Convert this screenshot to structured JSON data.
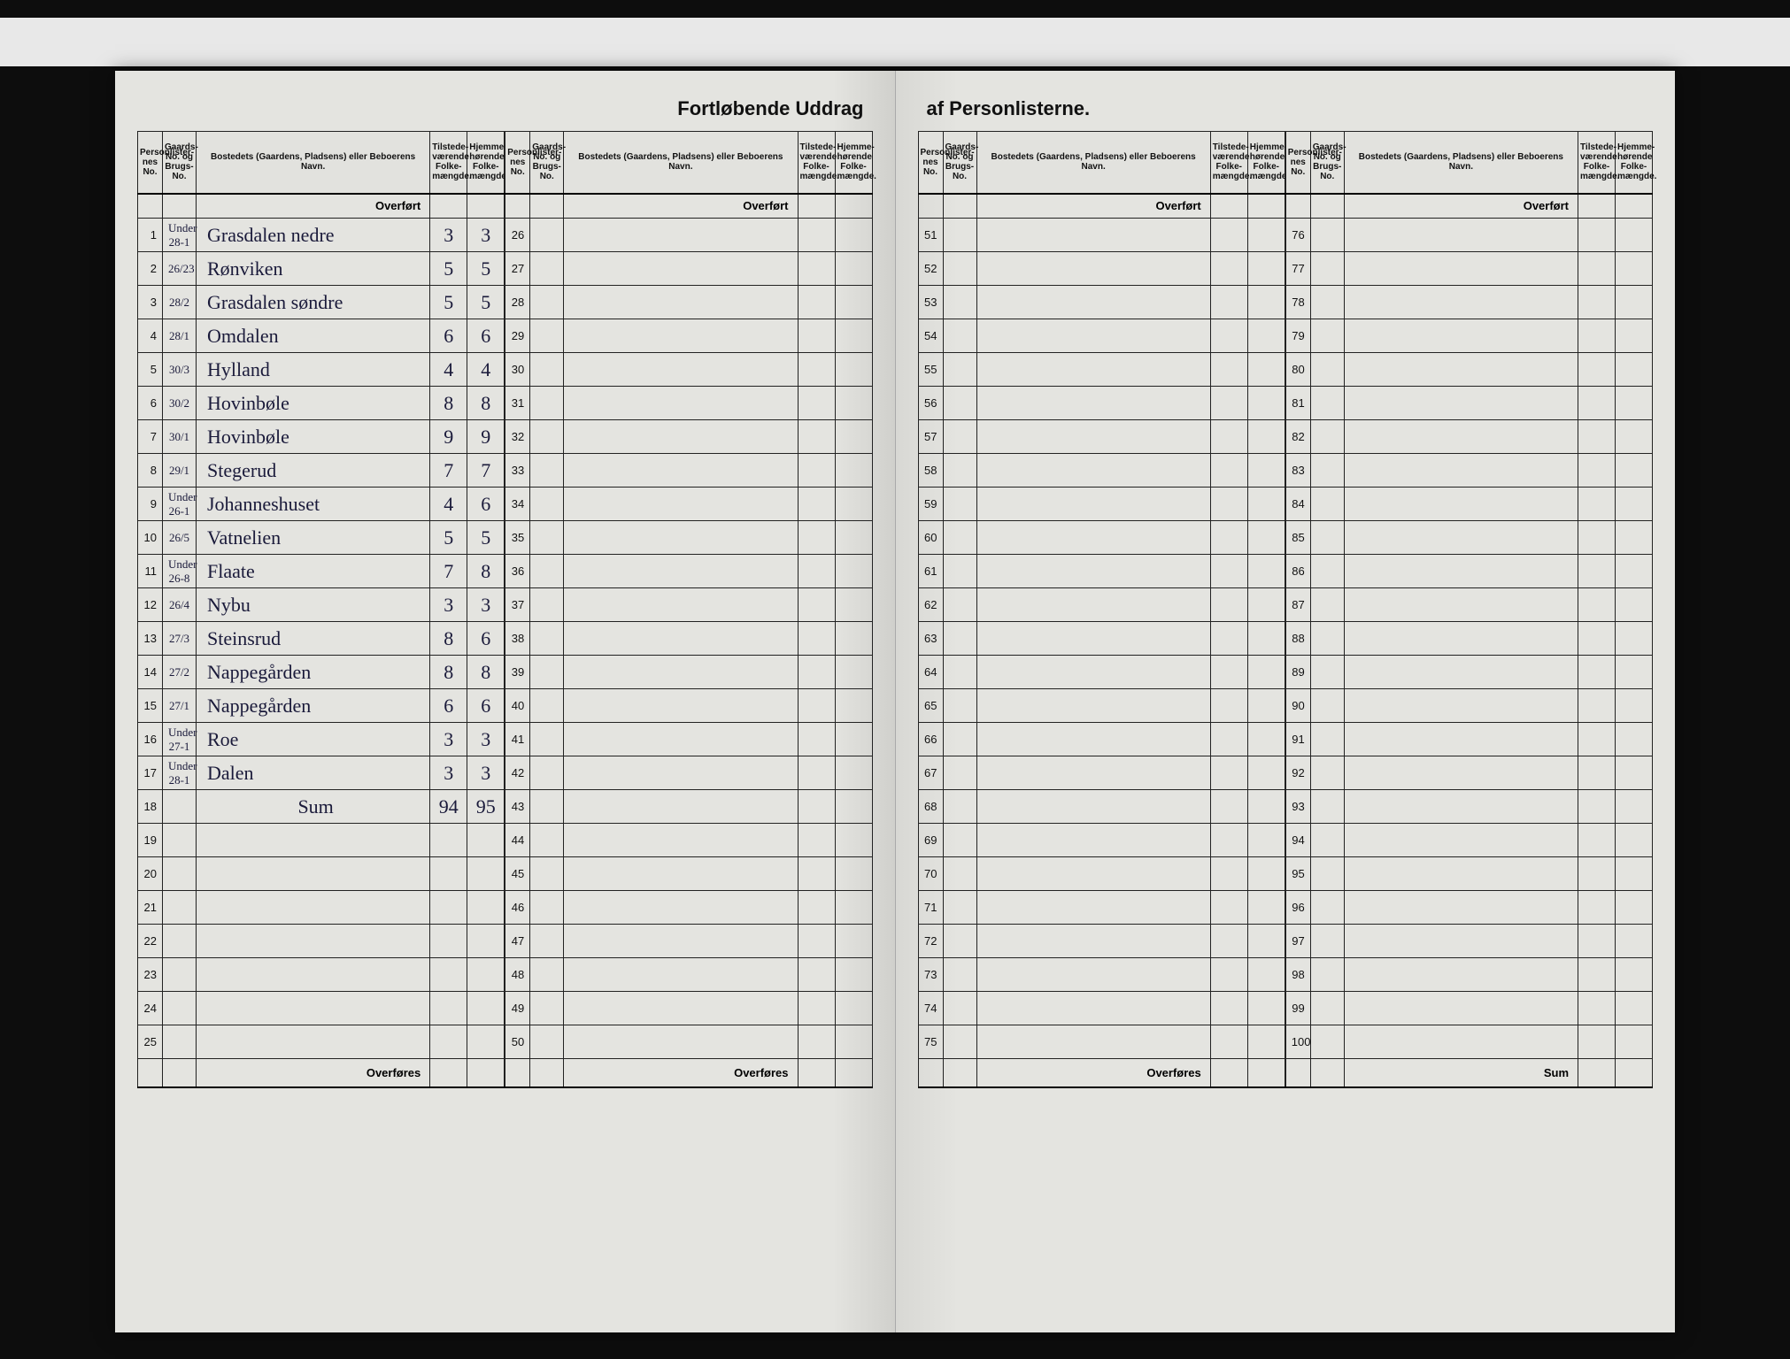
{
  "document": {
    "title_left": "Fortløbende Uddrag",
    "title_right": "af Personlisterne.",
    "overfort_label": "Overført",
    "overfores_label": "Overføres",
    "sum_label": "Sum",
    "headers": {
      "personlist_no": "Personlister-nes No.",
      "gaards_no": "Gaards-No. og Brugs-No.",
      "bosted": "Bostedets (Gaardens, Pladsens) eller Beboerens Navn.",
      "tilstede": "Tilstede-værende Folke-mængde.",
      "hjemme": "Hjemme-hørende Folke-mængde."
    }
  },
  "rows_block1": [
    {
      "n": "1",
      "g": "Under 28-1",
      "name": "Grasdalen nedre",
      "t": "3",
      "h": "3"
    },
    {
      "n": "2",
      "g": "26/23",
      "name": "Rønviken",
      "t": "5",
      "h": "5"
    },
    {
      "n": "3",
      "g": "28/2",
      "name": "Grasdalen søndre",
      "t": "5",
      "h": "5"
    },
    {
      "n": "4",
      "g": "28/1",
      "name": "Omdalen",
      "t": "6",
      "h": "6"
    },
    {
      "n": "5",
      "g": "30/3",
      "name": "Hylland",
      "t": "4",
      "h": "4"
    },
    {
      "n": "6",
      "g": "30/2",
      "name": "Hovinbøle",
      "t": "8",
      "h": "8"
    },
    {
      "n": "7",
      "g": "30/1",
      "name": "Hovinbøle",
      "t": "9",
      "h": "9"
    },
    {
      "n": "8",
      "g": "29/1",
      "name": "Stegerud",
      "t": "7",
      "h": "7"
    },
    {
      "n": "9",
      "g": "Under 26-1",
      "name": "Johanneshuset",
      "t": "4",
      "h": "6"
    },
    {
      "n": "10",
      "g": "26/5",
      "name": "Vatnelien",
      "t": "5",
      "h": "5"
    },
    {
      "n": "11",
      "g": "Under 26-8",
      "name": "Flaate",
      "t": "7",
      "h": "8"
    },
    {
      "n": "12",
      "g": "26/4",
      "name": "Nybu",
      "t": "3",
      "h": "3"
    },
    {
      "n": "13",
      "g": "27/3",
      "name": "Steinsrud",
      "t": "8",
      "h": "6"
    },
    {
      "n": "14",
      "g": "27/2",
      "name": "Nappegården",
      "t": "8",
      "h": "8"
    },
    {
      "n": "15",
      "g": "27/1",
      "name": "Nappegården",
      "t": "6",
      "h": "6"
    },
    {
      "n": "16",
      "g": "Under 27-1",
      "name": "Roe",
      "t": "3",
      "h": "3"
    },
    {
      "n": "17",
      "g": "Under 28-1",
      "name": "Dalen",
      "t": "3",
      "h": "3"
    },
    {
      "n": "18",
      "g": "",
      "name": "Sum",
      "t": "94",
      "h": "95"
    },
    {
      "n": "19",
      "g": "",
      "name": "",
      "t": "",
      "h": ""
    },
    {
      "n": "20",
      "g": "",
      "name": "",
      "t": "",
      "h": ""
    },
    {
      "n": "21",
      "g": "",
      "name": "",
      "t": "",
      "h": ""
    },
    {
      "n": "22",
      "g": "",
      "name": "",
      "t": "",
      "h": ""
    },
    {
      "n": "23",
      "g": "",
      "name": "",
      "t": "",
      "h": ""
    },
    {
      "n": "24",
      "g": "",
      "name": "",
      "t": "",
      "h": ""
    },
    {
      "n": "25",
      "g": "",
      "name": "",
      "t": "",
      "h": ""
    }
  ],
  "rows_block2": [
    {
      "n": "26"
    },
    {
      "n": "27"
    },
    {
      "n": "28"
    },
    {
      "n": "29"
    },
    {
      "n": "30"
    },
    {
      "n": "31"
    },
    {
      "n": "32"
    },
    {
      "n": "33"
    },
    {
      "n": "34"
    },
    {
      "n": "35"
    },
    {
      "n": "36"
    },
    {
      "n": "37"
    },
    {
      "n": "38"
    },
    {
      "n": "39"
    },
    {
      "n": "40"
    },
    {
      "n": "41"
    },
    {
      "n": "42"
    },
    {
      "n": "43"
    },
    {
      "n": "44"
    },
    {
      "n": "45"
    },
    {
      "n": "46"
    },
    {
      "n": "47"
    },
    {
      "n": "48"
    },
    {
      "n": "49"
    },
    {
      "n": "50"
    }
  ],
  "rows_block3": [
    {
      "n": "51"
    },
    {
      "n": "52"
    },
    {
      "n": "53"
    },
    {
      "n": "54"
    },
    {
      "n": "55"
    },
    {
      "n": "56"
    },
    {
      "n": "57"
    },
    {
      "n": "58"
    },
    {
      "n": "59"
    },
    {
      "n": "60"
    },
    {
      "n": "61"
    },
    {
      "n": "62"
    },
    {
      "n": "63"
    },
    {
      "n": "64"
    },
    {
      "n": "65"
    },
    {
      "n": "66"
    },
    {
      "n": "67"
    },
    {
      "n": "68"
    },
    {
      "n": "69"
    },
    {
      "n": "70"
    },
    {
      "n": "71"
    },
    {
      "n": "72"
    },
    {
      "n": "73"
    },
    {
      "n": "74"
    },
    {
      "n": "75"
    }
  ],
  "rows_block4": [
    {
      "n": "76"
    },
    {
      "n": "77"
    },
    {
      "n": "78"
    },
    {
      "n": "79"
    },
    {
      "n": "80"
    },
    {
      "n": "81"
    },
    {
      "n": "82"
    },
    {
      "n": "83"
    },
    {
      "n": "84"
    },
    {
      "n": "85"
    },
    {
      "n": "86"
    },
    {
      "n": "87"
    },
    {
      "n": "88"
    },
    {
      "n": "89"
    },
    {
      "n": "90"
    },
    {
      "n": "91"
    },
    {
      "n": "92"
    },
    {
      "n": "93"
    },
    {
      "n": "94"
    },
    {
      "n": "95"
    },
    {
      "n": "96"
    },
    {
      "n": "97"
    },
    {
      "n": "98"
    },
    {
      "n": "99"
    },
    {
      "n": "100"
    }
  ],
  "style": {
    "page_bg": "#e4e4e0",
    "ink": "#1a1a3a",
    "rule": "#222222",
    "handwriting_font": "Brush Script MT",
    "print_font": "Arial Narrow"
  }
}
